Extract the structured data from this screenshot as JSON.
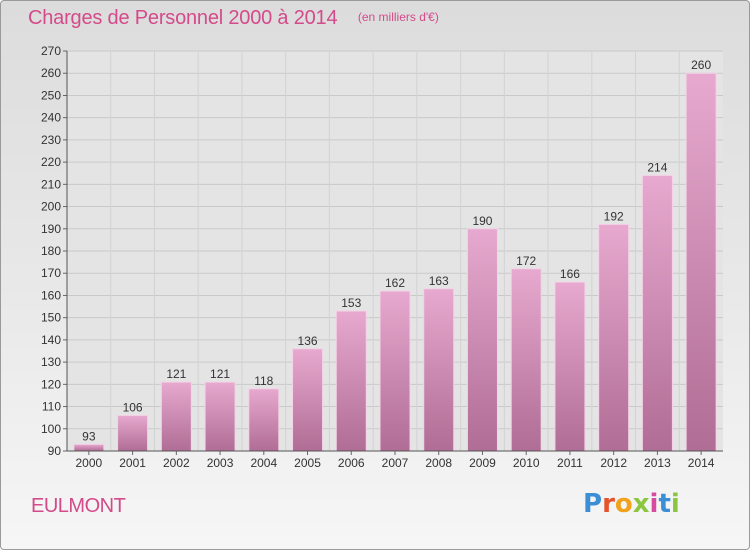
{
  "chart_data": {
    "type": "bar",
    "title": "Charges de Personnel 2000 à 2014",
    "subtitle": "(en milliers d'€)",
    "categories": [
      "2000",
      "2001",
      "2002",
      "2003",
      "2004",
      "2005",
      "2006",
      "2007",
      "2008",
      "2009",
      "2010",
      "2011",
      "2012",
      "2013",
      "2014"
    ],
    "values": [
      93,
      106,
      121,
      121,
      118,
      136,
      153,
      162,
      163,
      190,
      172,
      166,
      192,
      214,
      260
    ],
    "ylim": [
      90,
      270
    ],
    "yticks": [
      90,
      100,
      110,
      120,
      130,
      140,
      150,
      160,
      170,
      180,
      190,
      200,
      210,
      220,
      230,
      240,
      250,
      260,
      270
    ],
    "grid": true,
    "legend": "none",
    "colors": {
      "bar_top": "#e7a9cf",
      "bar_bottom": "#b06d95",
      "text_accent": "#d44a8a"
    }
  },
  "footer": {
    "commune": "EULMONT",
    "brand": "Proxiti"
  }
}
